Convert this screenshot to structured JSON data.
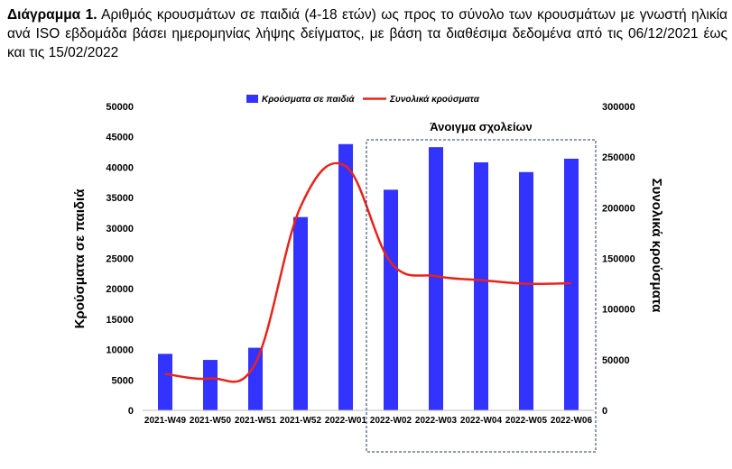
{
  "caption": {
    "label": "Διάγραμμα 1.",
    "text": " Αριθμός κρουσμάτων σε παιδιά (4-18 ετών) ως προς το σύνολο των κρουσμάτων με γνωστή ηλικία ανά ISO εβδομάδα βάσει ημερομηνίας λήψης δείγματος, με βάση τα διαθέσιμα δεδομένα από τις 06/12/2021 έως και τις 15/02/2022"
  },
  "chart_data": {
    "type": "bar+line",
    "categories": [
      "2021-W49",
      "2021-W50",
      "2021-W51",
      "2021-W52",
      "2022-W01",
      "2022-W02",
      "2022-W03",
      "2022-W04",
      "2022-W05",
      "2022-W06"
    ],
    "series": [
      {
        "name": "Κρούσματα σε παιδιά",
        "type": "bar",
        "axis": "left",
        "color": "#3333ff",
        "values": [
          9300,
          8300,
          10300,
          31800,
          43800,
          36300,
          43300,
          40800,
          39200,
          41400
        ]
      },
      {
        "name": "Συνολικά κρούσματα",
        "type": "line",
        "axis": "right",
        "color": "#e8231b",
        "values": [
          36000,
          31500,
          46500,
          201000,
          241000,
          146000,
          132500,
          128500,
          125000,
          125500
        ]
      }
    ],
    "ylabel": "Κρούσματα σε παιδιά",
    "y2label": "Συνολικά κρούσματα",
    "ylim": [
      0,
      50000
    ],
    "yticks": [
      0,
      5000,
      10000,
      15000,
      20000,
      25000,
      30000,
      35000,
      40000,
      45000,
      50000
    ],
    "y2lim": [
      0,
      300000
    ],
    "y2ticks": [
      0,
      50000,
      100000,
      150000,
      200000,
      250000,
      300000
    ],
    "grid": false,
    "legend_position": "top",
    "annotation": {
      "text": "Άνοιγμα σχολείων",
      "from_category": "2022-W02",
      "to_category": "2022-W06"
    }
  }
}
